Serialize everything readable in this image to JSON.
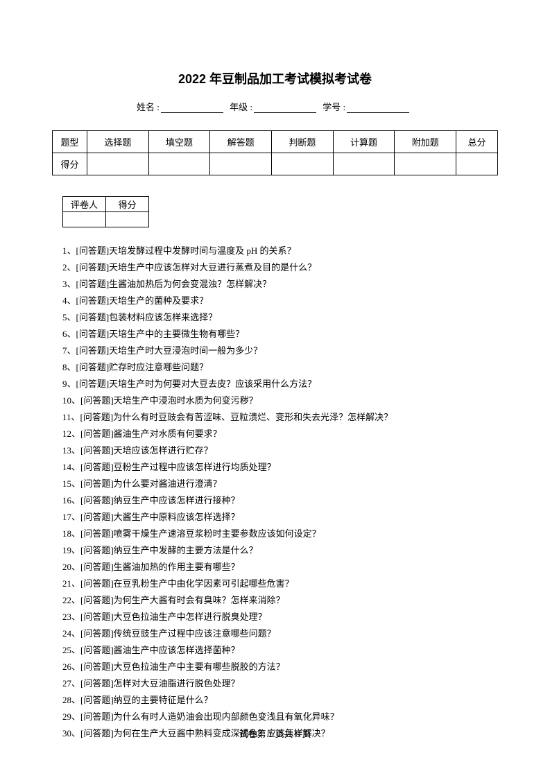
{
  "title": "2022 年豆制品加工考试模拟考试卷",
  "info": {
    "name_label": "姓名 :",
    "grade_label": "年级 :",
    "id_label": "学号 :"
  },
  "main_table": {
    "row1_label": "题型",
    "headers": [
      "选择题",
      "填空题",
      "解答题",
      "判断题",
      "计算题",
      "附加题",
      "总分"
    ],
    "row2_label": "得分"
  },
  "grader_table": {
    "col1": "评卷人",
    "col2": "得分"
  },
  "questions": [
    "1、[问答题]天培发酵过程中发酵时间与温度及 pH 的关系？",
    "2、[问答题]天培生产中应该怎样对大豆进行蒸煮及目的是什么？",
    "3、[问答题]生酱油加热后为何会变混浊？怎样解决？",
    "4、[问答题]天培生产的菌种及要求？",
    "5、[问答题]包装材料应该怎样来选择？",
    "6、[问答题]天培生产中的主要微生物有哪些？",
    "7、[问答题]天培生产时大豆浸泡时间一般为多少？",
    "8、[问答题]贮存时应注意哪些问题？",
    "9、[问答题]天培生产时为何要对大豆去皮？应该采用什么方法？",
    "10、[问答题]天培生产中浸泡时水质为何变污秽？",
    "11、[问答题]为什么有时豆豉会有苦涩味、豆粒溃烂、变形和失去光泽？怎样解决？",
    "12、[问答题]酱油生产对水质有何要求？",
    "13、[问答题]天培应该怎样进行贮存？",
    "14、[问答题]豆粉生产过程中应该怎样进行均质处理？",
    "15、[问答题]为什么要对酱油进行澄清？",
    "16、[问答题]纳豆生产中应该怎样进行接种？",
    "17、[问答题]大酱生产中原料应该怎样选择？",
    "18、[问答题]喷雾干燥生产速溶豆浆粉时主要参数应该如何设定？",
    "19、[问答题]纳豆生产中发酵的主要方法是什么？",
    "20、[问答题]生酱油加热的作用主要有哪些？",
    "21、[问答题]在豆乳粉生产中由化学因素可引起哪些危害？",
    "22、[问答题]为何生产大酱有时会有臭味？怎样来消除？",
    "23、[问答题]大豆色拉油生产中怎样进行脱臭处理？",
    "24、[问答题]传统豆豉生产过程中应该注意哪些问题？",
    "25、[问答题]酱油生产中应该怎样选择菌种？",
    "26、[问答题]大豆色拉油生产中主要有哪些脱胶的方法？",
    "27、[问答题]怎样对大豆油脂进行脱色处理？",
    "28、[问答题]纳豆的主要特征是什么？",
    "29、[问答题]为什么有时人造奶油会出现内部颜色变浅且有氧化异味？",
    "30、[问答题]为何在生产大豆酱中熟料变成深褐色？应该怎样解决？"
  ],
  "footer": "试卷第 1 页共 6 页"
}
